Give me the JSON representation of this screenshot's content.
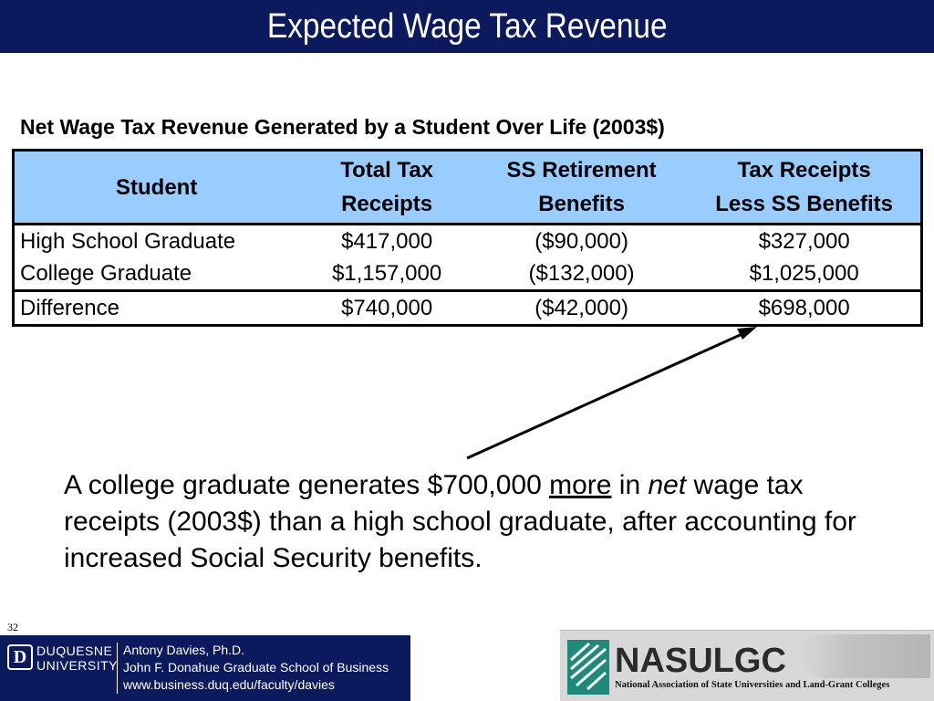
{
  "slide": {
    "title": "Expected Wage Tax Revenue",
    "page_number": "32"
  },
  "table": {
    "caption": "Net Wage Tax Revenue Generated by a Student Over Life (2003$)",
    "headers": {
      "student": "Student",
      "total_tax_line1": "Total Tax",
      "total_tax_line2": "Receipts",
      "ss_line1": "SS Retirement",
      "ss_line2": "Benefits",
      "net_line1": "Tax Receipts",
      "net_line2": "Less SS Benefits"
    },
    "rows": [
      {
        "student": "High School Graduate",
        "total_tax": "$417,000",
        "ss": "($90,000)",
        "net": "$327,000"
      },
      {
        "student": "College Graduate",
        "total_tax": "$1,157,000",
        "ss": "($132,000)",
        "net": "$1,025,000"
      },
      {
        "student": "Difference",
        "total_tax": "$740,000",
        "ss": "($42,000)",
        "net": "$698,000"
      }
    ]
  },
  "summary": {
    "part1": "A college graduate generates $700,000 ",
    "underlined": "more",
    "part2": " in ",
    "italic": "net",
    "part3": " wage tax receipts (2003$) than a high school graduate, after accounting for increased Social Security benefits."
  },
  "footer_left": {
    "logo_letter": "D",
    "university_line1": "DUQUESNE",
    "university_line2": "UNIVERSITY",
    "author": "Antony Davies, Ph.D.",
    "school": "John F. Donahue Graduate School of Business",
    "url": "www.business.duq.edu/faculty/davies"
  },
  "footer_right": {
    "org_short": "NASULGC",
    "org_full": "National Association of State Universities and Land-Grant Colleges"
  },
  "colors": {
    "title_bar": "#0a1a5c",
    "table_header": "#99ccff"
  }
}
